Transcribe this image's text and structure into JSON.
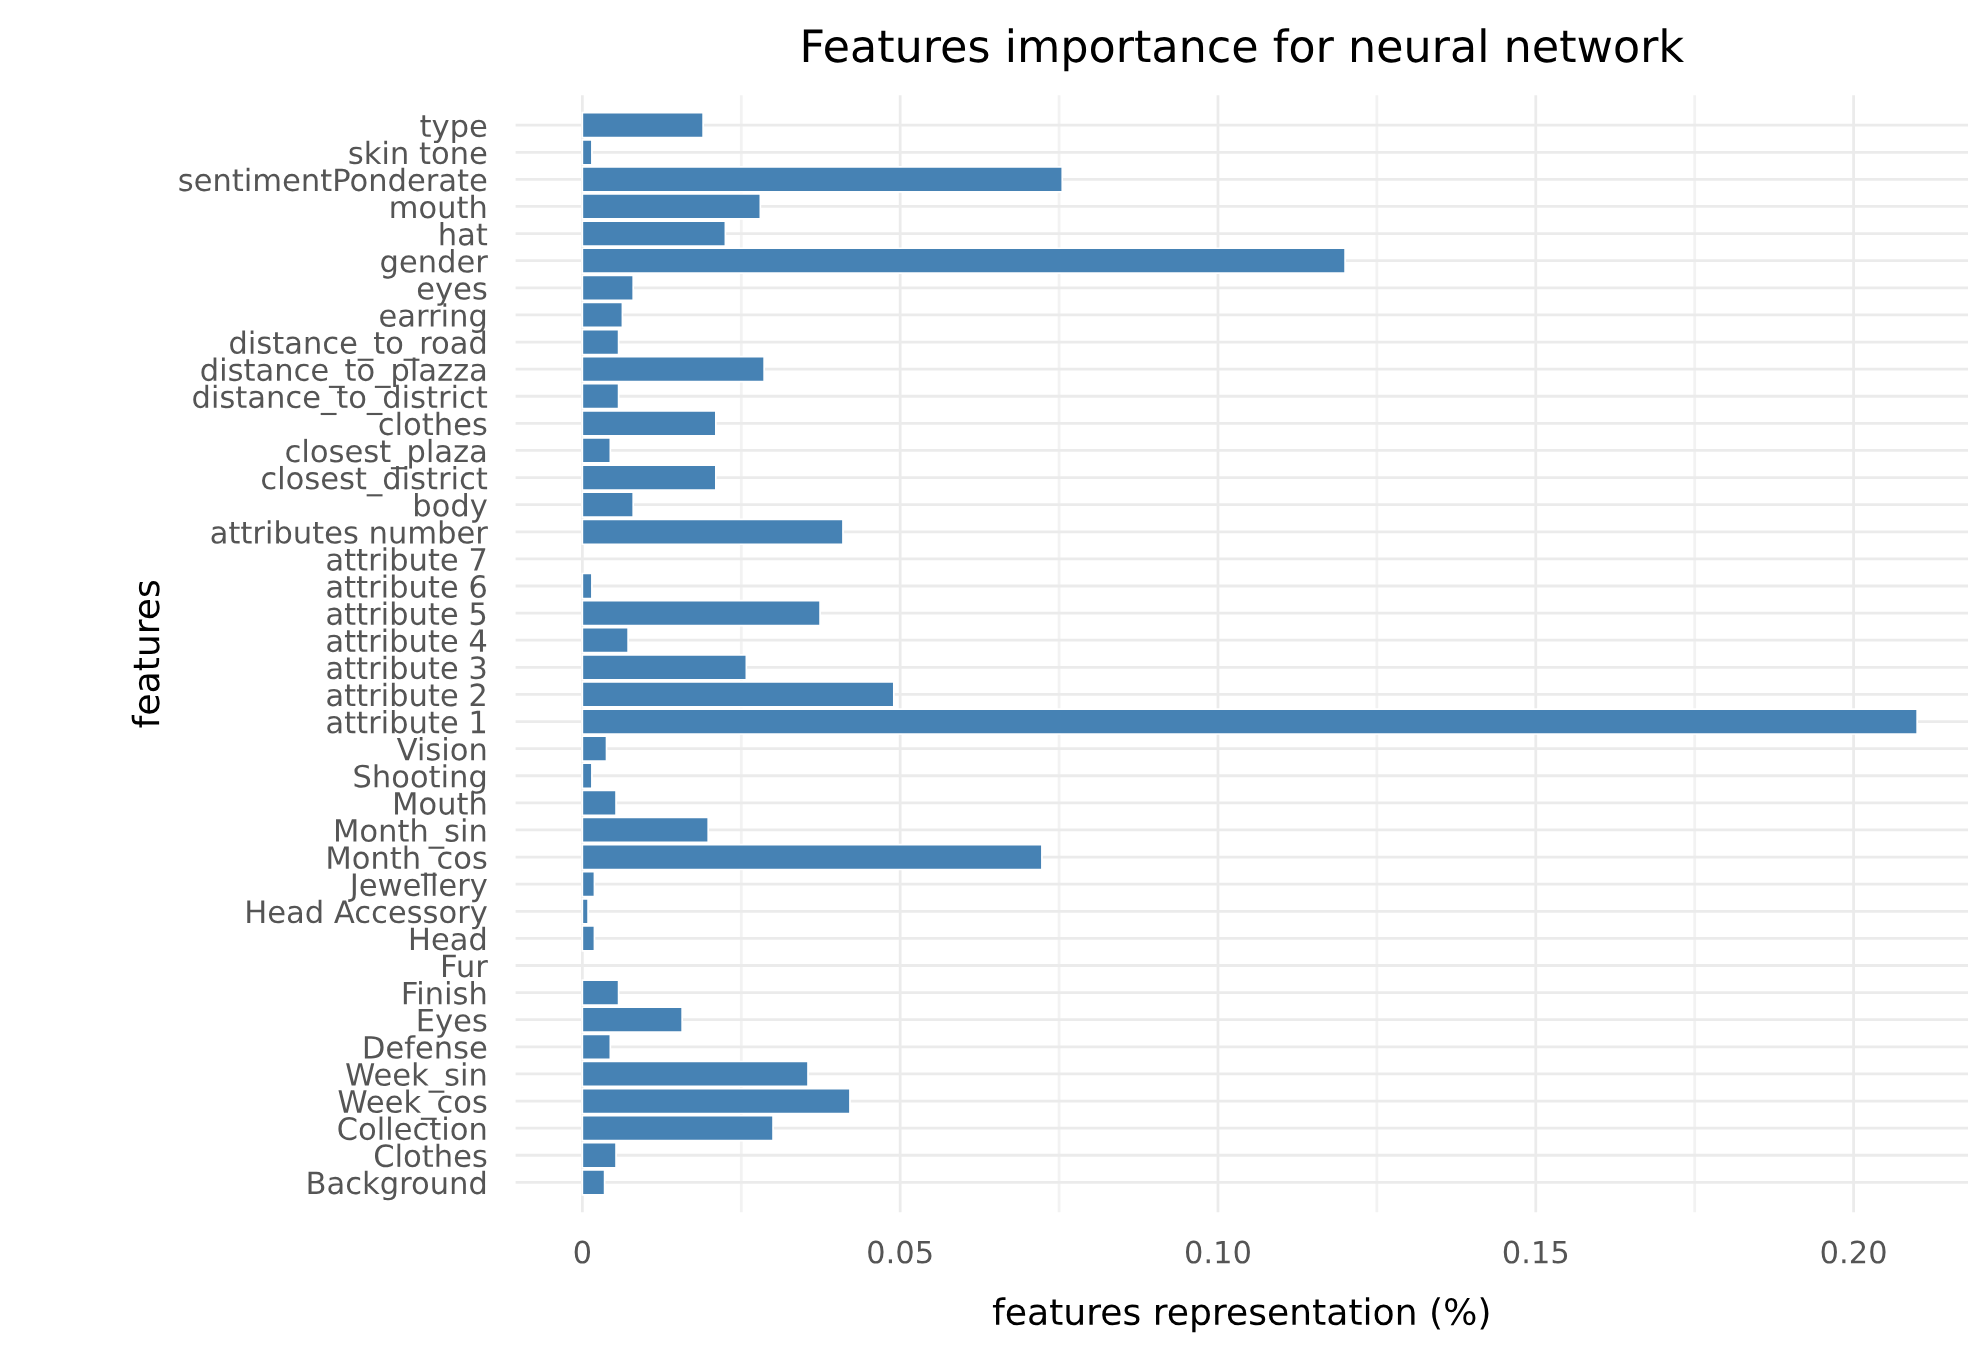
{
  "chart_data": {
    "type": "bar",
    "orientation": "horizontal",
    "title": "Features importance for neural network",
    "xlabel": "features representation (%)",
    "ylabel": "features",
    "categories": [
      "type",
      "skin tone",
      "sentimentPonderate",
      "mouth",
      "hat",
      "gender",
      "eyes",
      "earring",
      "distance_to_road",
      "distance_to_plazza",
      "distance_to_district",
      "clothes",
      "closest_plaza",
      "closest_district",
      "body",
      "attributes number",
      "attribute 7",
      "attribute 6",
      "attribute 5",
      "attribute 4",
      "attribute 3",
      "attribute 2",
      "attribute 1",
      "Vision",
      "Shooting",
      "Mouth",
      "Month_sin",
      "Month_cos",
      "Jewellery",
      "Head Accessory",
      "Head",
      "Fur",
      "Finish",
      "Eyes",
      "Defense",
      "Week_sin",
      "Week_cos",
      "Collection",
      "Clothes",
      "Background"
    ],
    "values": [
      0.019,
      0.0015,
      0.0755,
      0.028,
      0.0225,
      0.12,
      0.008,
      0.0063,
      0.0057,
      0.0286,
      0.0057,
      0.021,
      0.0044,
      0.021,
      0.008,
      0.041,
      0,
      0.0015,
      0.0374,
      0.0072,
      0.0258,
      0.049,
      0.21,
      0.0038,
      0.0015,
      0.0053,
      0.0198,
      0.0723,
      0.0019,
      0.0009,
      0.0019,
      0,
      0.0057,
      0.0157,
      0.0044,
      0.0355,
      0.0421,
      0.03,
      0.0053,
      0.0035
    ],
    "color": "#4682b4",
    "xlim": [
      -0.0105,
      0.218
    ],
    "xticks": [
      0,
      {
        "value": 0.025,
        "label": null
      },
      {
        "value": 0.05,
        "label": "0.05"
      },
      {
        "value": 0.075,
        "label": null
      },
      {
        "value": 0.1,
        "label": "0.10"
      },
      {
        "value": 0.125,
        "label": null
      },
      {
        "value": 0.15,
        "label": "0.15"
      },
      {
        "value": 0.175,
        "label": null
      },
      {
        "value": 0.2,
        "label": "0.20"
      }
    ],
    "grid": true
  }
}
